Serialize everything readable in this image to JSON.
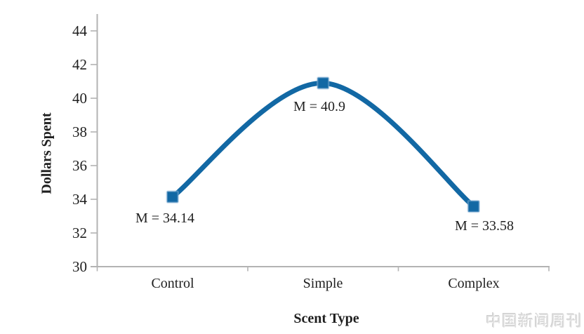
{
  "chart_data": {
    "type": "line",
    "categories": [
      "Control",
      "Simple",
      "Complex"
    ],
    "series": [
      {
        "name": "Dollars Spent",
        "values": [
          34.14,
          40.9,
          33.58
        ]
      }
    ],
    "point_labels": [
      "M = 34.14",
      "M = 40.9",
      "M = 33.58"
    ],
    "xlabel": "Scent Type",
    "ylabel": "Dollars Spent",
    "ylim": [
      30,
      44
    ],
    "yticks": [
      "44",
      "42",
      "40",
      "38",
      "36",
      "34",
      "32",
      "30"
    ],
    "grid": false,
    "legend": "none",
    "smooth": true,
    "marker": "square",
    "line_color": "#1268a4",
    "marker_halo_color": "rgba(140,180,215,0.45)",
    "axis_color": "#b3b3b3",
    "text_color": "#1f1f1f"
  },
  "watermark": {
    "text": "中国新闻周刊"
  }
}
